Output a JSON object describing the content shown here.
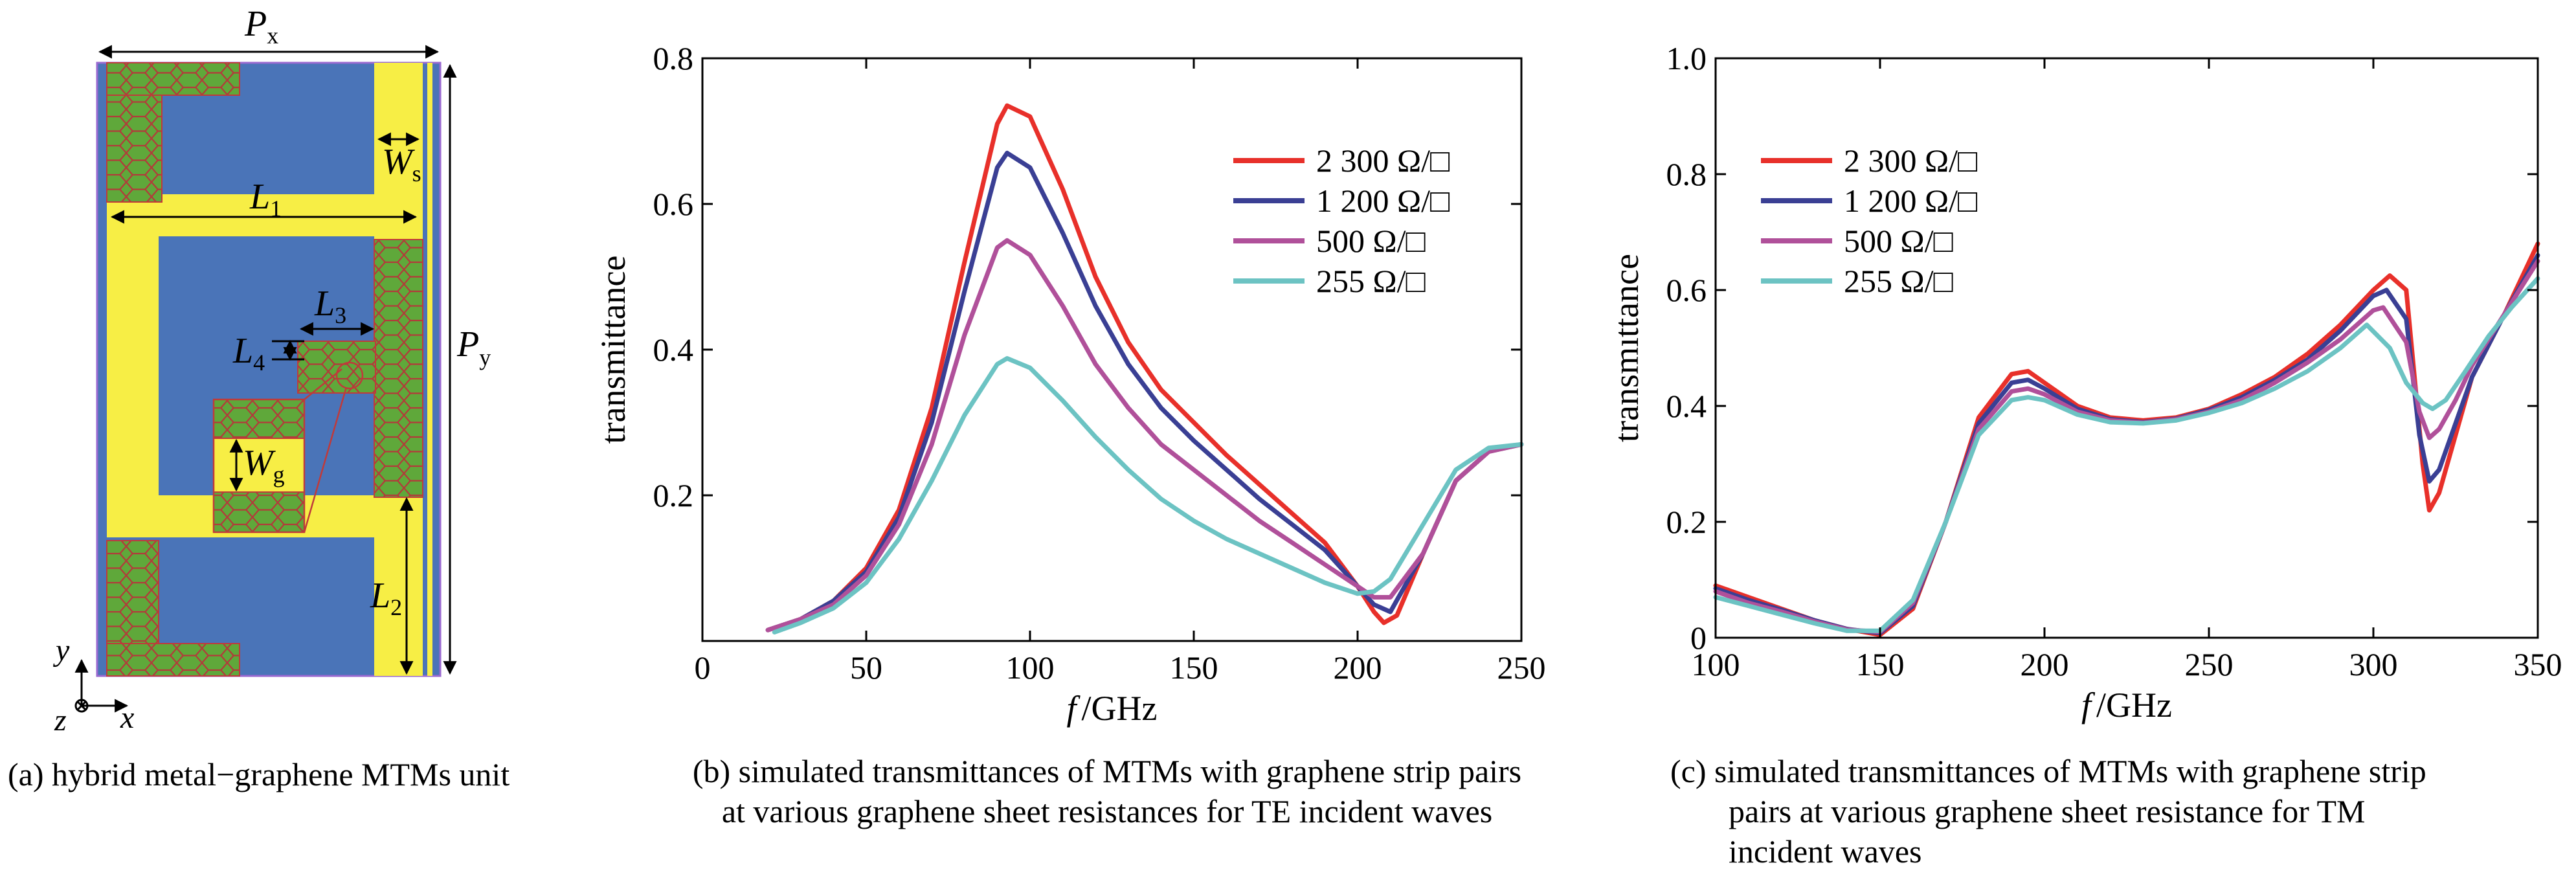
{
  "panel_a": {
    "dim_labels": {
      "Px": {
        "main": "P",
        "sub": "x"
      },
      "Py": {
        "main": "P",
        "sub": "y"
      },
      "L1": {
        "main": "L",
        "sub": "1"
      },
      "L2": {
        "main": "L",
        "sub": "2"
      },
      "L3": {
        "main": "L",
        "sub": "3"
      },
      "L4": {
        "main": "L",
        "sub": "4"
      },
      "Ws": {
        "main": "W",
        "sub": "s"
      },
      "Wg": {
        "main": "W",
        "sub": "g"
      }
    },
    "axes_labels": {
      "y": "y",
      "z": "z",
      "x": "x"
    },
    "colors": {
      "substrate": "#4a74b8",
      "metal": "#f7ee45",
      "graphene": "#5fa83a",
      "outline": "#c03a3a"
    },
    "caption": [
      "(a) hybrid metal−graphene MTMs unit"
    ]
  },
  "chart_data": [
    {
      "type": "line",
      "xlabel_italic": "f",
      "xlabel_unit": "/GHz",
      "ylabel": "transmittance",
      "xlim": [
        0,
        250
      ],
      "ylim": [
        0,
        0.8
      ],
      "xticks": [
        "0",
        "50",
        "100",
        "150",
        "200",
        "250"
      ],
      "yticks": [
        "0.2",
        "0.4",
        "0.6",
        "0.8"
      ],
      "legend_position": "top-right",
      "series": [
        {
          "name": "2 300 Ω/□",
          "color": "#e8302a",
          "x": [
            20,
            30,
            40,
            50,
            60,
            70,
            80,
            90,
            93,
            100,
            110,
            120,
            130,
            140,
            150,
            160,
            170,
            180,
            190,
            195,
            200,
            205,
            208,
            212,
            220,
            230,
            240,
            250
          ],
          "y": [
            0.015,
            0.03,
            0.055,
            0.1,
            0.18,
            0.32,
            0.52,
            0.71,
            0.735,
            0.72,
            0.62,
            0.5,
            0.41,
            0.345,
            0.3,
            0.255,
            0.215,
            0.175,
            0.135,
            0.105,
            0.075,
            0.04,
            0.025,
            0.035,
            0.12,
            0.22,
            0.26,
            0.27
          ]
        },
        {
          "name": "1 200 Ω/□",
          "color": "#3a3f94",
          "x": [
            20,
            30,
            40,
            50,
            60,
            70,
            80,
            90,
            93,
            100,
            110,
            120,
            130,
            140,
            150,
            160,
            170,
            180,
            190,
            195,
            200,
            205,
            210,
            220,
            230,
            240,
            250
          ],
          "y": [
            0.015,
            0.03,
            0.055,
            0.095,
            0.17,
            0.3,
            0.48,
            0.65,
            0.67,
            0.65,
            0.56,
            0.46,
            0.38,
            0.32,
            0.275,
            0.235,
            0.195,
            0.16,
            0.125,
            0.1,
            0.075,
            0.05,
            0.04,
            0.12,
            0.22,
            0.26,
            0.27
          ]
        },
        {
          "name": "500 Ω/□",
          "color": "#b0509a",
          "x": [
            20,
            30,
            40,
            50,
            60,
            70,
            80,
            90,
            93,
            100,
            110,
            120,
            130,
            140,
            150,
            160,
            170,
            180,
            190,
            200,
            205,
            210,
            220,
            230,
            240,
            250
          ],
          "y": [
            0.015,
            0.03,
            0.05,
            0.09,
            0.16,
            0.27,
            0.42,
            0.54,
            0.55,
            0.53,
            0.46,
            0.38,
            0.32,
            0.27,
            0.235,
            0.2,
            0.165,
            0.135,
            0.105,
            0.075,
            0.06,
            0.06,
            0.12,
            0.22,
            0.26,
            0.27
          ]
        },
        {
          "name": "255 Ω/□",
          "color": "#6cc3c3",
          "x": [
            22,
            30,
            40,
            50,
            60,
            70,
            80,
            90,
            93,
            100,
            110,
            120,
            130,
            140,
            150,
            160,
            170,
            180,
            190,
            200,
            205,
            210,
            220,
            230,
            240,
            250
          ],
          "y": [
            0.012,
            0.025,
            0.045,
            0.08,
            0.14,
            0.22,
            0.31,
            0.38,
            0.388,
            0.375,
            0.33,
            0.28,
            0.235,
            0.195,
            0.165,
            0.14,
            0.12,
            0.1,
            0.08,
            0.065,
            0.068,
            0.085,
            0.16,
            0.235,
            0.265,
            0.27
          ]
        }
      ],
      "caption": [
        "(b) simulated transmittances of MTMs with graphene strip pairs",
        "at various graphene sheet resistances for TE incident waves"
      ]
    },
    {
      "type": "line",
      "xlabel_italic": "f",
      "xlabel_unit": "/GHz",
      "ylabel": "transmittance",
      "xlim": [
        100,
        350
      ],
      "ylim": [
        0,
        1.0
      ],
      "xticks": [
        "100",
        "150",
        "200",
        "250",
        "300",
        "350"
      ],
      "yticks": [
        "0",
        "0.2",
        "0.4",
        "0.6",
        "0.8",
        "1.0"
      ],
      "legend_position": "top-left",
      "series": [
        {
          "name": "2 300 Ω/□",
          "color": "#e8302a",
          "x": [
            100,
            110,
            120,
            130,
            140,
            150,
            160,
            170,
            180,
            190,
            195,
            200,
            210,
            220,
            230,
            240,
            250,
            260,
            270,
            280,
            290,
            300,
            305,
            310,
            315,
            317,
            320,
            325,
            330,
            340,
            350
          ],
          "y": [
            0.09,
            0.07,
            0.05,
            0.03,
            0.015,
            0.005,
            0.05,
            0.2,
            0.38,
            0.455,
            0.46,
            0.44,
            0.4,
            0.38,
            0.375,
            0.38,
            0.395,
            0.42,
            0.45,
            0.49,
            0.54,
            0.6,
            0.625,
            0.6,
            0.3,
            0.22,
            0.25,
            0.35,
            0.45,
            0.56,
            0.68
          ]
        },
        {
          "name": "1 200 Ω/□",
          "color": "#3a3f94",
          "x": [
            100,
            110,
            120,
            130,
            140,
            150,
            160,
            170,
            180,
            190,
            195,
            200,
            210,
            220,
            230,
            240,
            250,
            260,
            270,
            280,
            290,
            300,
            304,
            310,
            314,
            317,
            320,
            325,
            330,
            340,
            350
          ],
          "y": [
            0.085,
            0.065,
            0.048,
            0.03,
            0.015,
            0.008,
            0.055,
            0.2,
            0.37,
            0.44,
            0.445,
            0.43,
            0.395,
            0.377,
            0.372,
            0.378,
            0.393,
            0.415,
            0.445,
            0.48,
            0.53,
            0.59,
            0.6,
            0.55,
            0.35,
            0.27,
            0.29,
            0.37,
            0.45,
            0.56,
            0.66
          ]
        },
        {
          "name": "500 Ω/□",
          "color": "#b0509a",
          "x": [
            100,
            110,
            120,
            130,
            140,
            150,
            160,
            170,
            180,
            190,
            195,
            200,
            210,
            220,
            230,
            240,
            250,
            260,
            270,
            280,
            290,
            300,
            303,
            310,
            314,
            317,
            320,
            325,
            330,
            340,
            350
          ],
          "y": [
            0.08,
            0.06,
            0.045,
            0.028,
            0.014,
            0.01,
            0.06,
            0.2,
            0.36,
            0.425,
            0.43,
            0.42,
            0.39,
            0.375,
            0.371,
            0.377,
            0.39,
            0.41,
            0.44,
            0.475,
            0.515,
            0.565,
            0.57,
            0.51,
            0.39,
            0.345,
            0.36,
            0.41,
            0.47,
            0.56,
            0.65
          ]
        },
        {
          "name": "255 Ω/□",
          "color": "#6cc3c3",
          "x": [
            100,
            110,
            120,
            130,
            140,
            150,
            160,
            170,
            180,
            190,
            195,
            200,
            210,
            220,
            230,
            240,
            250,
            260,
            270,
            280,
            290,
            298,
            305,
            310,
            315,
            318,
            322,
            328,
            335,
            342,
            350
          ],
          "y": [
            0.07,
            0.055,
            0.04,
            0.025,
            0.012,
            0.012,
            0.065,
            0.2,
            0.35,
            0.41,
            0.415,
            0.41,
            0.385,
            0.372,
            0.37,
            0.375,
            0.388,
            0.405,
            0.43,
            0.46,
            0.5,
            0.54,
            0.5,
            0.44,
            0.405,
            0.395,
            0.41,
            0.46,
            0.52,
            0.57,
            0.62
          ]
        }
      ],
      "caption": [
        "(c) simulated transmittances of MTMs with graphene strip",
        "pairs at various graphene sheet resistance for TM",
        "incident waves"
      ]
    }
  ]
}
